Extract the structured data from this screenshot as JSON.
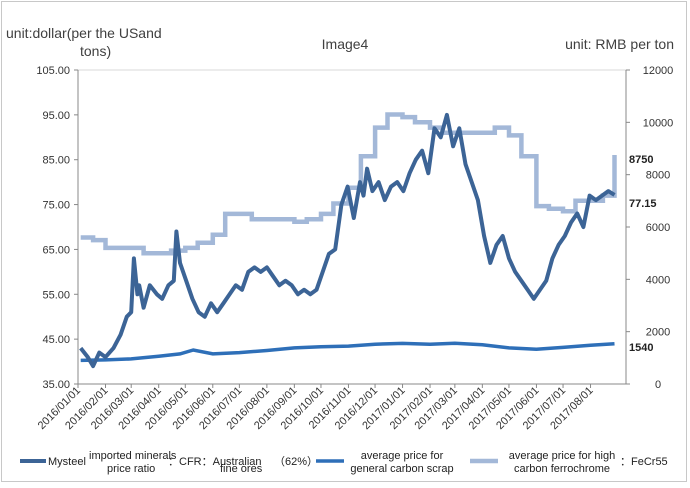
{
  "chart_data": {
    "type": "line",
    "title": "Image4",
    "ylabel_left": "unit:dollar(per the USand tons)",
    "ylabel_right": "unit: RMB per ton",
    "y_left": {
      "min": 35,
      "max": 105,
      "ticks": [
        "35.00",
        "45.00",
        "55.00",
        "65.00",
        "75.00",
        "85.00",
        "95.00",
        "105.00"
      ]
    },
    "y_right": {
      "min": 0,
      "max": 12000,
      "ticks": [
        "0",
        "2000",
        "4000",
        "6000",
        "8000",
        "10000",
        "12000"
      ]
    },
    "x_ticks": [
      "2016/01/01",
      "2016/02/01",
      "2016/03/01",
      "2016/04/01",
      "2016/05/01",
      "2016/06/01",
      "2016/07/01",
      "2016/08/01",
      "2016/09/01",
      "2016/10/01",
      "2016/11/01",
      "2016/12/01",
      "2017/01/01",
      "2017/02/01",
      "2017/03/01",
      "2017/04/01",
      "2017/05/01",
      "2017/06/01",
      "2017/07/01",
      "2017/08/01"
    ],
    "annotations": {
      "iron_ore_last": "77.15",
      "ferrochrome_last": "8750",
      "scrap_last": "1540"
    },
    "series": [
      {
        "name": "Mysteel imported minerals price ratio：CFR：Australian fine ores（62%）",
        "axis": "left",
        "color": "#3c6496",
        "x": [
          "2016/01/04",
          "2016/01/12",
          "2016/01/18",
          "2016/01/25",
          "2016/02/01",
          "2016/02/10",
          "2016/02/18",
          "2016/02/25",
          "2016/03/01",
          "2016/03/04",
          "2016/03/08",
          "2016/03/10",
          "2016/03/15",
          "2016/03/22",
          "2016/03/30",
          "2016/04/05",
          "2016/04/12",
          "2016/04/18",
          "2016/04/21",
          "2016/04/25",
          "2016/05/02",
          "2016/05/09",
          "2016/05/16",
          "2016/05/23",
          "2016/05/30",
          "2016/06/06",
          "2016/06/13",
          "2016/06/20",
          "2016/06/27",
          "2016/07/04",
          "2016/07/11",
          "2016/07/18",
          "2016/07/25",
          "2016/08/01",
          "2016/08/08",
          "2016/08/15",
          "2016/08/22",
          "2016/08/29",
          "2016/09/05",
          "2016/09/12",
          "2016/09/19",
          "2016/09/26",
          "2016/10/03",
          "2016/10/10",
          "2016/10/17",
          "2016/10/24",
          "2016/10/31",
          "2016/11/07",
          "2016/11/14",
          "2016/11/18",
          "2016/11/22",
          "2016/11/28",
          "2016/12/05",
          "2016/12/12",
          "2016/12/19",
          "2016/12/26",
          "2017/01/02",
          "2017/01/09",
          "2017/01/16",
          "2017/01/23",
          "2017/01/30",
          "2017/02/06",
          "2017/02/13",
          "2017/02/20",
          "2017/02/27",
          "2017/03/06",
          "2017/03/13",
          "2017/03/20",
          "2017/03/27",
          "2017/04/03",
          "2017/04/10",
          "2017/04/17",
          "2017/04/24",
          "2017/05/01",
          "2017/05/08",
          "2017/05/15",
          "2017/05/22",
          "2017/05/29",
          "2017/06/05",
          "2017/06/12",
          "2017/06/19",
          "2017/06/26",
          "2017/07/03",
          "2017/07/10",
          "2017/07/17",
          "2017/07/24",
          "2017/07/31",
          "2017/08/07",
          "2017/08/14",
          "2017/08/21",
          "2017/08/28"
        ],
        "values": [
          43,
          41,
          39,
          42,
          41,
          43,
          46,
          50,
          51,
          63,
          55,
          57,
          52,
          57,
          55,
          54,
          57,
          58,
          69,
          62,
          58,
          54,
          51,
          50,
          53,
          51,
          53,
          55,
          57,
          56,
          60,
          61,
          60,
          61,
          59,
          57,
          58,
          57,
          55,
          56,
          55,
          56,
          60,
          64,
          65,
          75,
          79,
          72,
          80,
          77,
          83,
          78,
          80,
          76,
          79,
          80,
          78,
          82,
          85,
          87,
          82,
          92,
          90,
          95,
          88,
          92,
          84,
          80,
          76,
          68,
          62,
          66,
          68,
          63,
          60,
          58,
          56,
          54,
          56,
          58,
          63,
          66,
          68,
          71,
          73,
          70,
          77,
          76,
          77,
          78,
          77.15
        ]
      },
      {
        "name": "average price for general carbon scrap",
        "axis": "right",
        "color": "#2e6fb8",
        "x": [
          "2016/01/04",
          "2016/02/01",
          "2016/03/01",
          "2016/04/01",
          "2016/04/25",
          "2016/05/10",
          "2016/06/01",
          "2016/07/01",
          "2016/08/01",
          "2016/09/01",
          "2016/10/01",
          "2016/11/01",
          "2016/12/01",
          "2017/01/01",
          "2017/02/01",
          "2017/03/01",
          "2017/04/01",
          "2017/05/01",
          "2017/06/01",
          "2017/07/01",
          "2017/08/01",
          "2017/08/28"
        ],
        "values": [
          900,
          920,
          960,
          1060,
          1150,
          1300,
          1150,
          1200,
          1280,
          1380,
          1420,
          1450,
          1520,
          1550,
          1520,
          1560,
          1500,
          1380,
          1330,
          1400,
          1480,
          1540
        ]
      },
      {
        "name": "average price for high carbon ferrochrome：FeCr55",
        "axis": "right",
        "color": "#a3b8d8",
        "x": [
          "2016/01/04",
          "2016/01/18",
          "2016/02/01",
          "2016/03/01",
          "2016/03/15",
          "2016/04/01",
          "2016/04/15",
          "2016/05/01",
          "2016/05/15",
          "2016/06/01",
          "2016/06/15",
          "2016/07/01",
          "2016/07/15",
          "2016/08/01",
          "2016/08/15",
          "2016/09/01",
          "2016/09/15",
          "2016/10/01",
          "2016/10/15",
          "2016/11/01",
          "2016/11/15",
          "2016/12/01",
          "2016/12/15",
          "2017/01/01",
          "2017/01/15",
          "2017/02/01",
          "2017/02/15",
          "2017/03/01",
          "2017/03/15",
          "2017/04/01",
          "2017/04/15",
          "2017/05/01",
          "2017/05/15",
          "2017/06/01",
          "2017/06/15",
          "2017/07/01",
          "2017/07/15",
          "2017/08/01",
          "2017/08/15",
          "2017/08/28"
        ],
        "values": [
          5600,
          5500,
          5200,
          5200,
          5000,
          5000,
          5100,
          5200,
          5400,
          5700,
          6500,
          6500,
          6300,
          6300,
          6300,
          6200,
          6300,
          6500,
          6900,
          7500,
          8700,
          9800,
          10300,
          10200,
          10000,
          9800,
          9600,
          9600,
          9600,
          9600,
          9800,
          9500,
          8700,
          6800,
          6700,
          6600,
          7000,
          7000,
          7200,
          8750
        ]
      }
    ]
  },
  "legend": {
    "s1_a": "Mysteel",
    "s1_b": "imported minerals",
    "s1_c": "price ratio",
    "s1_d": "：CFR：Australian",
    "s1_e": "fine ores",
    "s1_f": "（62%）",
    "s2_a": "average price for",
    "s2_b": "general carbon scrap",
    "s3_a": "average price for high",
    "s3_b": "carbon ferrochrome",
    "s3_c": "：FeCr55"
  }
}
